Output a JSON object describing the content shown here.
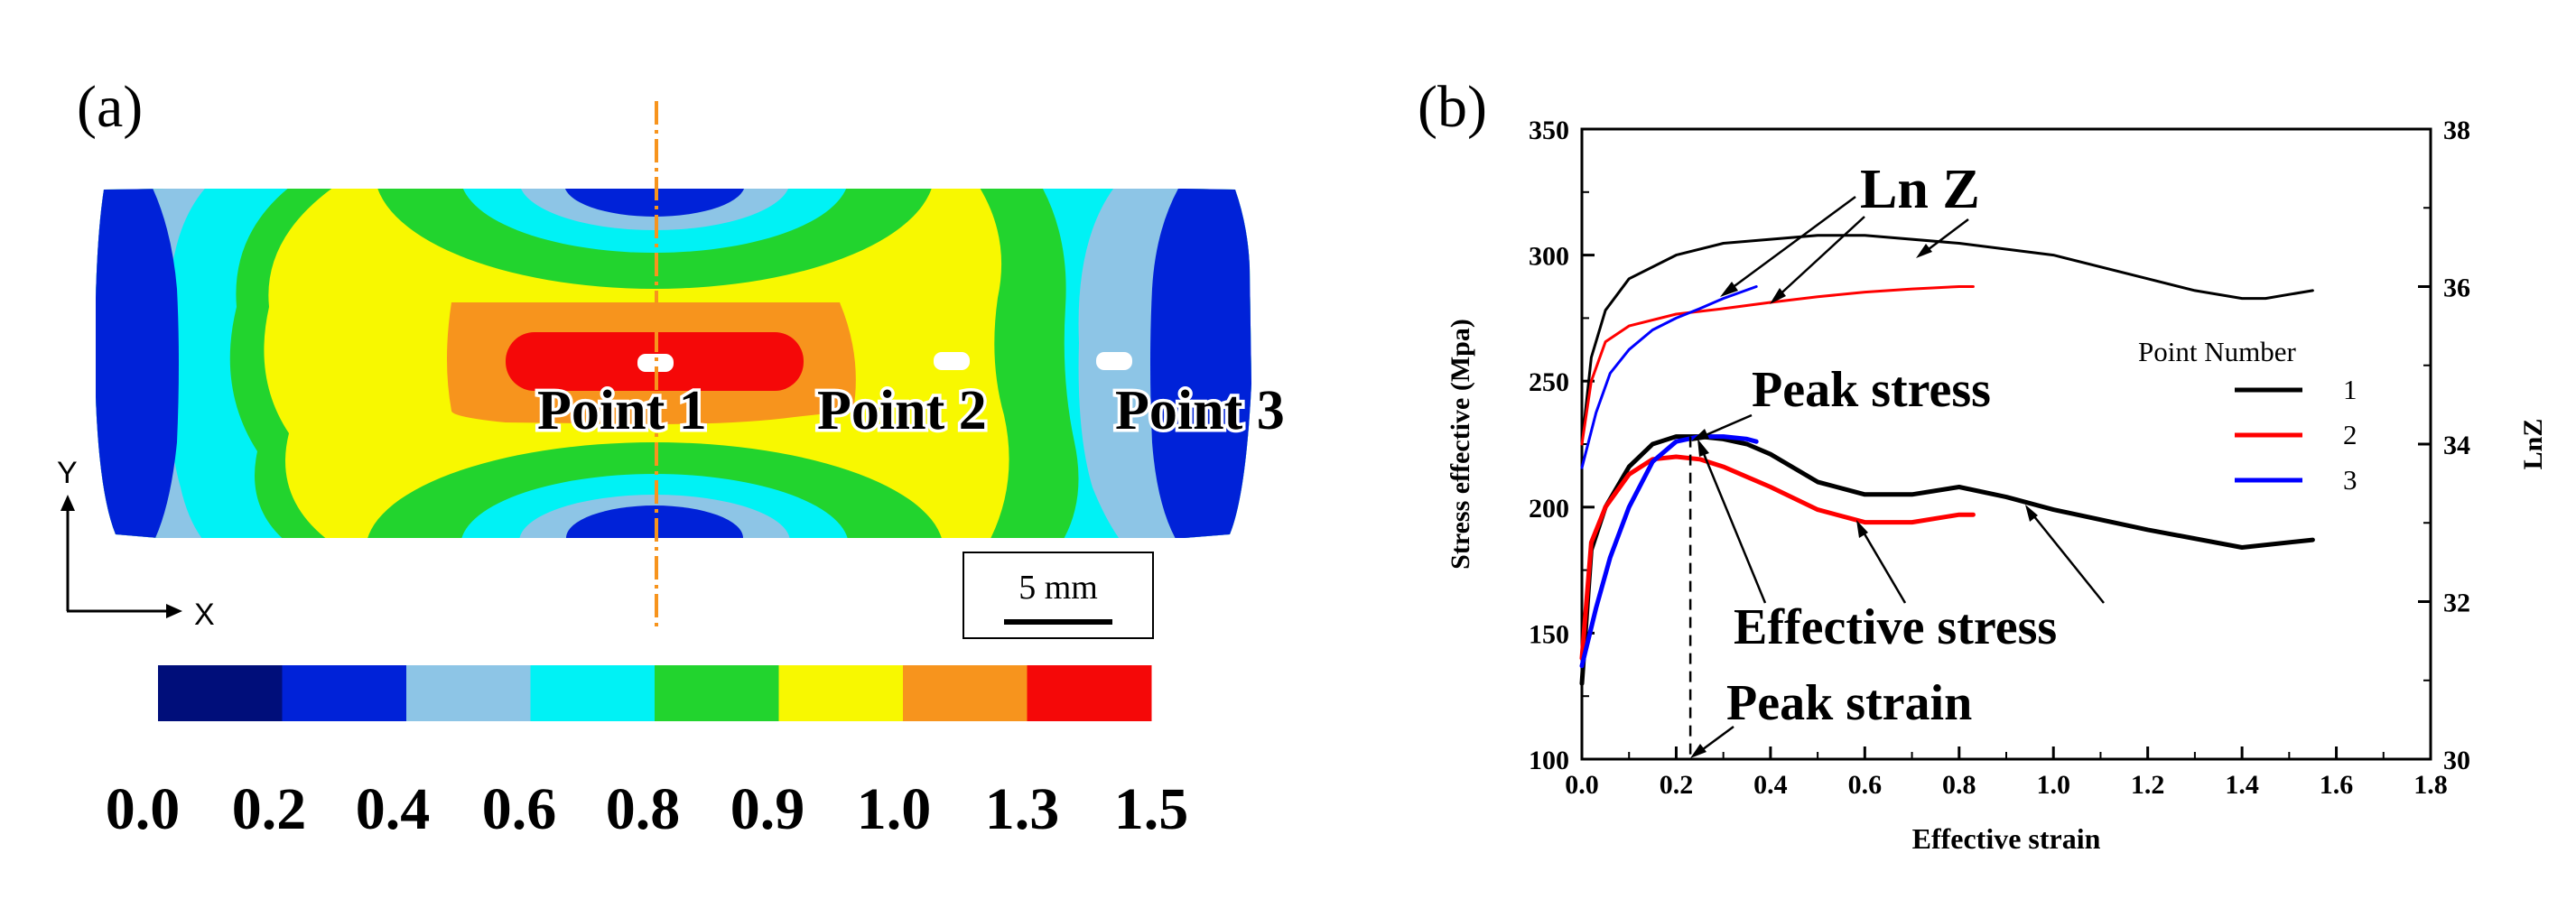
{
  "panel_a": {
    "label": "(a)",
    "points": [
      {
        "name": "Point 1"
      },
      {
        "name": "Point 2"
      },
      {
        "name": "Point 3"
      }
    ],
    "axis_y": "Y",
    "axis_x": "X",
    "scale_bar": "5 mm",
    "colorbar": {
      "colors": [
        "#000e7a",
        "#0022d8",
        "#8dc5e6",
        "#00f2f5",
        "#22d42e",
        "#f8f800",
        "#f7941d",
        "#f50808"
      ],
      "labels": [
        "0.0",
        "0.2",
        "0.4",
        "0.6",
        "0.8",
        "0.9",
        "1.0",
        "1.3",
        "1.5"
      ]
    },
    "contour_colors": {
      "blue": "#0022d8",
      "light_blue": "#8dc5e6",
      "cyan": "#00f2f5",
      "green": "#22d42e",
      "yellow": "#f8f800",
      "orange": "#f7941d",
      "red": "#f50808",
      "centerline": "#f7941d"
    }
  },
  "panel_b": {
    "label": "(b)",
    "annotations": {
      "ln_z": "Ln Z",
      "peak_stress": "Peak stress",
      "effective_stress": "Effective stress",
      "peak_strain": "Peak strain"
    }
  },
  "chart_data": {
    "type": "line",
    "title": "",
    "xlabel": "Effective strain",
    "ylabel": "Stress effective (Mpa)",
    "y2label": "LnZ",
    "xlim": [
      0,
      1.8
    ],
    "ylim": [
      100,
      350
    ],
    "y2lim": [
      30,
      38
    ],
    "xticks": [
      "0.0",
      "0.2",
      "0.4",
      "0.6",
      "0.8",
      "1.0",
      "1.2",
      "1.4",
      "1.6",
      "1.8"
    ],
    "yticks": [
      "100",
      "150",
      "200",
      "250",
      "300",
      "350"
    ],
    "y2ticks": [
      "30",
      "32",
      "34",
      "36",
      "38"
    ],
    "legend_title": "Point Number",
    "legend_position": "right",
    "peak_strain": 0.23,
    "series": [
      {
        "name": "1",
        "color": "#000000",
        "kind": "stress",
        "axis": "left",
        "x": [
          0,
          0.02,
          0.05,
          0.1,
          0.15,
          0.2,
          0.25,
          0.3,
          0.35,
          0.4,
          0.5,
          0.6,
          0.7,
          0.8,
          0.9,
          1.0,
          1.2,
          1.4,
          1.55
        ],
        "y": [
          130,
          183,
          200,
          216,
          225,
          228,
          228,
          227,
          225,
          221,
          210,
          205,
          205,
          208,
          204,
          199,
          191,
          184,
          187
        ]
      },
      {
        "name": "2",
        "color": "#ff0000",
        "kind": "stress",
        "axis": "left",
        "x": [
          0,
          0.02,
          0.05,
          0.1,
          0.15,
          0.2,
          0.25,
          0.3,
          0.35,
          0.4,
          0.5,
          0.6,
          0.7,
          0.8,
          0.83
        ],
        "y": [
          140,
          186,
          200,
          213,
          219,
          220,
          219,
          216,
          212,
          208,
          199,
          194,
          194,
          197,
          197
        ]
      },
      {
        "name": "3",
        "color": "#0000ff",
        "kind": "stress",
        "axis": "left",
        "x": [
          0,
          0.03,
          0.06,
          0.1,
          0.15,
          0.2,
          0.25,
          0.3,
          0.35,
          0.37
        ],
        "y": [
          137,
          160,
          180,
          200,
          218,
          226,
          228,
          228,
          227,
          226
        ]
      },
      {
        "name": "1",
        "color": "#000000",
        "kind": "lnz",
        "axis": "right",
        "x": [
          0,
          0.02,
          0.05,
          0.1,
          0.2,
          0.3,
          0.4,
          0.5,
          0.6,
          0.8,
          1.0,
          1.2,
          1.3,
          1.4,
          1.45,
          1.5,
          1.55
        ],
        "y": [
          34.0,
          35.1,
          35.7,
          36.1,
          36.4,
          36.55,
          36.6,
          36.65,
          36.65,
          36.55,
          36.4,
          36.1,
          35.95,
          35.85,
          35.85,
          35.9,
          35.95
        ]
      },
      {
        "name": "2",
        "color": "#ff0000",
        "kind": "lnz",
        "axis": "right",
        "x": [
          0,
          0.02,
          0.05,
          0.1,
          0.2,
          0.3,
          0.4,
          0.5,
          0.6,
          0.7,
          0.8,
          0.83
        ],
        "y": [
          34.0,
          34.8,
          35.3,
          35.5,
          35.65,
          35.72,
          35.8,
          35.87,
          35.93,
          35.97,
          36.0,
          36.0
        ]
      },
      {
        "name": "3",
        "color": "#0000ff",
        "kind": "lnz",
        "axis": "right",
        "x": [
          0,
          0.03,
          0.06,
          0.1,
          0.15,
          0.2,
          0.25,
          0.3,
          0.37
        ],
        "y": [
          33.7,
          34.4,
          34.9,
          35.2,
          35.45,
          35.6,
          35.72,
          35.85,
          36.0
        ]
      }
    ]
  }
}
